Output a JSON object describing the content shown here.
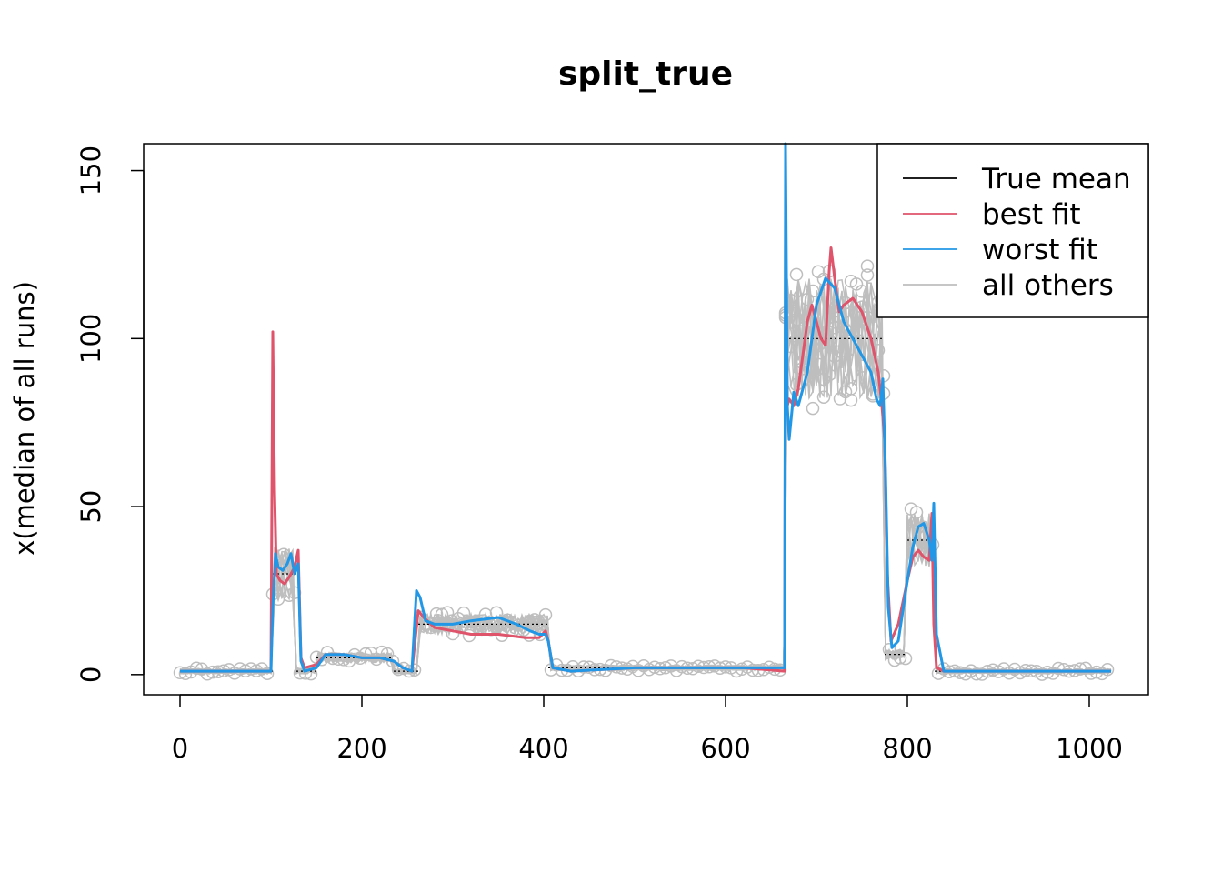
{
  "chart_data": {
    "type": "line",
    "title": "split_true",
    "xlabel": "",
    "ylabel": "x(median of all runs)",
    "xlim": [
      -40,
      1065
    ],
    "ylim": [
      -6,
      158
    ],
    "x_ticks": [
      0,
      200,
      400,
      600,
      800,
      1000
    ],
    "x_tick_labels": [
      "0",
      "200",
      "400",
      "600",
      "800",
      "1000"
    ],
    "y_ticks": [
      0,
      50,
      100,
      150
    ],
    "y_tick_labels": [
      "0",
      "50",
      "100",
      "150"
    ],
    "legend_position": "top-right",
    "legend": [
      {
        "label": "True mean",
        "color": "#000000"
      },
      {
        "label": "best fit",
        "color": "#DF536B"
      },
      {
        "label": "worst fit",
        "color": "#2297E6"
      },
      {
        "label": "all others",
        "color": "#BEBEBE"
      }
    ],
    "colors": {
      "true_mean": "#000000",
      "best_fit": "#DF536B",
      "worst_fit": "#2297E6",
      "others": "#BEBEBE",
      "points": "#BEBEBE"
    },
    "true_mean_segments": [
      {
        "x0": 0,
        "x1": 102,
        "y": 1
      },
      {
        "x0": 102,
        "x1": 128,
        "y": 30
      },
      {
        "x0": 128,
        "x1": 150,
        "y": 1
      },
      {
        "x0": 150,
        "x1": 235,
        "y": 5
      },
      {
        "x0": 235,
        "x1": 262,
        "y": 1
      },
      {
        "x0": 262,
        "x1": 405,
        "y": 15
      },
      {
        "x0": 405,
        "x1": 665,
        "y": 2
      },
      {
        "x0": 665,
        "x1": 775,
        "y": 100
      },
      {
        "x0": 775,
        "x1": 800,
        "y": 6
      },
      {
        "x0": 800,
        "x1": 830,
        "y": 40
      },
      {
        "x0": 830,
        "x1": 1024,
        "y": 1
      }
    ],
    "series": [
      {
        "name": "best fit",
        "x": [
          0,
          50,
          100,
          102,
          104,
          106,
          110,
          115,
          120,
          126,
          130,
          133,
          137,
          150,
          160,
          180,
          200,
          220,
          235,
          245,
          255,
          262,
          268,
          280,
          300,
          320,
          350,
          380,
          395,
          402,
          405,
          410,
          430,
          500,
          560,
          620,
          665,
          666,
          668,
          670,
          675,
          680,
          685,
          690,
          695,
          700,
          705,
          710,
          714,
          716,
          720,
          725,
          730,
          740,
          750,
          760,
          768,
          772,
          775,
          778,
          782,
          790,
          800,
          806,
          812,
          818,
          824,
          827,
          829,
          832,
          840,
          900,
          1000,
          1024
        ],
        "y": [
          1,
          1,
          1,
          102,
          55,
          30,
          28,
          27,
          29,
          32,
          37,
          5,
          2,
          3,
          6,
          6,
          5,
          5,
          4,
          2,
          1,
          19,
          17,
          14,
          13,
          12,
          12,
          11,
          11,
          13,
          10,
          2,
          1,
          2,
          2,
          2,
          1,
          135,
          80,
          82,
          80,
          85,
          95,
          105,
          110,
          105,
          100,
          98,
          120,
          127,
          118,
          108,
          110,
          112,
          108,
          100,
          90,
          80,
          70,
          30,
          10,
          15,
          28,
          35,
          37,
          35,
          34,
          48,
          15,
          2,
          1,
          1,
          1,
          1
        ]
      },
      {
        "name": "worst fit",
        "x": [
          0,
          50,
          100,
          102,
          105,
          108,
          113,
          118,
          122,
          126,
          130,
          133,
          137,
          150,
          160,
          180,
          200,
          220,
          235,
          245,
          255,
          260,
          264,
          270,
          280,
          300,
          320,
          350,
          370,
          385,
          395,
          402,
          405,
          410,
          430,
          500,
          560,
          620,
          665,
          666,
          667,
          668,
          670,
          675,
          680,
          690,
          700,
          710,
          720,
          730,
          740,
          750,
          760,
          766,
          770,
          773,
          776,
          779,
          783,
          790,
          800,
          806,
          812,
          818,
          824,
          827,
          829,
          832,
          840,
          900,
          1000,
          1024
        ],
        "y": [
          1,
          1,
          1,
          20,
          36,
          32,
          31,
          33,
          36,
          30,
          33,
          4,
          1,
          2,
          6,
          6,
          5,
          5,
          4,
          2,
          1,
          25,
          23,
          16,
          15,
          15,
          16,
          17,
          15,
          13,
          12,
          12,
          10,
          2,
          1,
          2,
          2,
          2,
          2,
          158,
          120,
          80,
          70,
          84,
          80,
          90,
          110,
          118,
          115,
          105,
          100,
          95,
          90,
          82,
          80,
          88,
          60,
          20,
          8,
          10,
          28,
          38,
          44,
          45,
          40,
          34,
          51,
          12,
          1,
          1,
          1,
          1
        ]
      }
    ]
  }
}
